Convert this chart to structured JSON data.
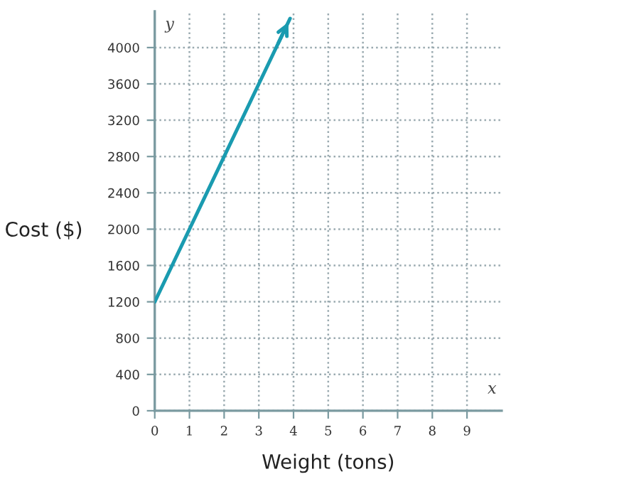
{
  "chart_data": {
    "type": "line",
    "xlabel": "Weight (tons)",
    "ylabel": "Cost ($)",
    "annotations": [
      "y",
      "x"
    ],
    "x": [
      0,
      3.9
    ],
    "series": [
      {
        "color": "#1a9bb0",
        "values": [
          1200,
          4320
        ]
      }
    ],
    "xlim": [
      0,
      10
    ],
    "xticks": [
      0,
      1,
      2,
      3,
      4,
      5,
      6,
      7,
      8,
      9
    ],
    "ylim": [
      0,
      4400
    ],
    "yticks": [
      0,
      400,
      800,
      1200,
      1600,
      2000,
      2400,
      2800,
      3200,
      3600,
      4000
    ],
    "grid": true,
    "line_style": "solid",
    "marker": "none"
  }
}
